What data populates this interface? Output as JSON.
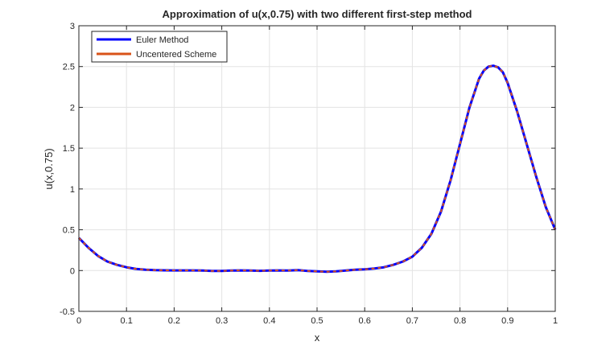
{
  "chart_data": {
    "type": "line",
    "title": "Approximation of u(x,0.75) with two different first-step method",
    "xlabel": "x",
    "ylabel": "u(x,0.75)",
    "xlim": [
      0,
      1
    ],
    "ylim": [
      -0.5,
      3
    ],
    "xticks": [
      "0",
      "0.1",
      "0.2",
      "0.3",
      "0.4",
      "0.5",
      "0.6",
      "0.7",
      "0.8",
      "0.9",
      "1"
    ],
    "yticks": [
      "-0.5",
      "0",
      "0.5",
      "1",
      "1.5",
      "2",
      "2.5",
      "3"
    ],
    "xtick_values": [
      0,
      0.1,
      0.2,
      0.3,
      0.4,
      0.5,
      0.6,
      0.7,
      0.8,
      0.9,
      1
    ],
    "ytick_values": [
      -0.5,
      0,
      0.5,
      1,
      1.5,
      2,
      2.5,
      3
    ],
    "grid": true,
    "legend_position": "top-left",
    "series": [
      {
        "name": "Euler Method",
        "color": "#0000ff",
        "x": [
          0,
          0.02,
          0.04,
          0.06,
          0.08,
          0.1,
          0.12,
          0.14,
          0.16,
          0.18,
          0.2,
          0.22,
          0.24,
          0.26,
          0.28,
          0.3,
          0.32,
          0.34,
          0.36,
          0.38,
          0.4,
          0.42,
          0.44,
          0.46,
          0.48,
          0.5,
          0.52,
          0.54,
          0.56,
          0.58,
          0.6,
          0.62,
          0.64,
          0.66,
          0.68,
          0.7,
          0.72,
          0.74,
          0.76,
          0.78,
          0.8,
          0.82,
          0.84,
          0.85,
          0.86,
          0.87,
          0.88,
          0.89,
          0.9,
          0.92,
          0.94,
          0.96,
          0.98,
          1.0
        ],
        "y": [
          0.4,
          0.28,
          0.18,
          0.11,
          0.07,
          0.04,
          0.02,
          0.01,
          0.005,
          0.003,
          0.002,
          0.002,
          0.001,
          0.0,
          -0.005,
          -0.005,
          0.0,
          0.002,
          0.0,
          -0.003,
          0.0,
          0.002,
          0.0,
          0.005,
          -0.005,
          -0.01,
          -0.015,
          -0.01,
          0.0,
          0.01,
          0.015,
          0.025,
          0.04,
          0.07,
          0.11,
          0.17,
          0.28,
          0.45,
          0.72,
          1.1,
          1.55,
          2.0,
          2.35,
          2.45,
          2.5,
          2.51,
          2.49,
          2.43,
          2.3,
          1.95,
          1.55,
          1.15,
          0.78,
          0.5
        ]
      },
      {
        "name": "Uncentered Scheme",
        "color": "#d95319",
        "x": [
          0,
          0.02,
          0.04,
          0.06,
          0.08,
          0.1,
          0.12,
          0.14,
          0.16,
          0.18,
          0.2,
          0.22,
          0.24,
          0.26,
          0.28,
          0.3,
          0.32,
          0.34,
          0.36,
          0.38,
          0.4,
          0.42,
          0.44,
          0.46,
          0.48,
          0.5,
          0.52,
          0.54,
          0.56,
          0.58,
          0.6,
          0.62,
          0.64,
          0.66,
          0.68,
          0.7,
          0.72,
          0.74,
          0.76,
          0.78,
          0.8,
          0.82,
          0.84,
          0.85,
          0.86,
          0.87,
          0.88,
          0.89,
          0.9,
          0.92,
          0.94,
          0.96,
          0.98,
          1.0
        ],
        "y": [
          0.4,
          0.28,
          0.18,
          0.11,
          0.07,
          0.04,
          0.02,
          0.01,
          0.005,
          0.003,
          0.002,
          0.002,
          0.001,
          0.0,
          -0.005,
          -0.005,
          0.0,
          0.002,
          0.0,
          -0.003,
          0.0,
          0.002,
          0.0,
          0.005,
          -0.005,
          -0.01,
          -0.015,
          -0.01,
          0.0,
          0.01,
          0.015,
          0.025,
          0.04,
          0.07,
          0.11,
          0.17,
          0.28,
          0.45,
          0.72,
          1.1,
          1.55,
          2.0,
          2.35,
          2.45,
          2.5,
          2.51,
          2.49,
          2.43,
          2.3,
          1.95,
          1.55,
          1.15,
          0.78,
          0.5
        ]
      }
    ]
  }
}
